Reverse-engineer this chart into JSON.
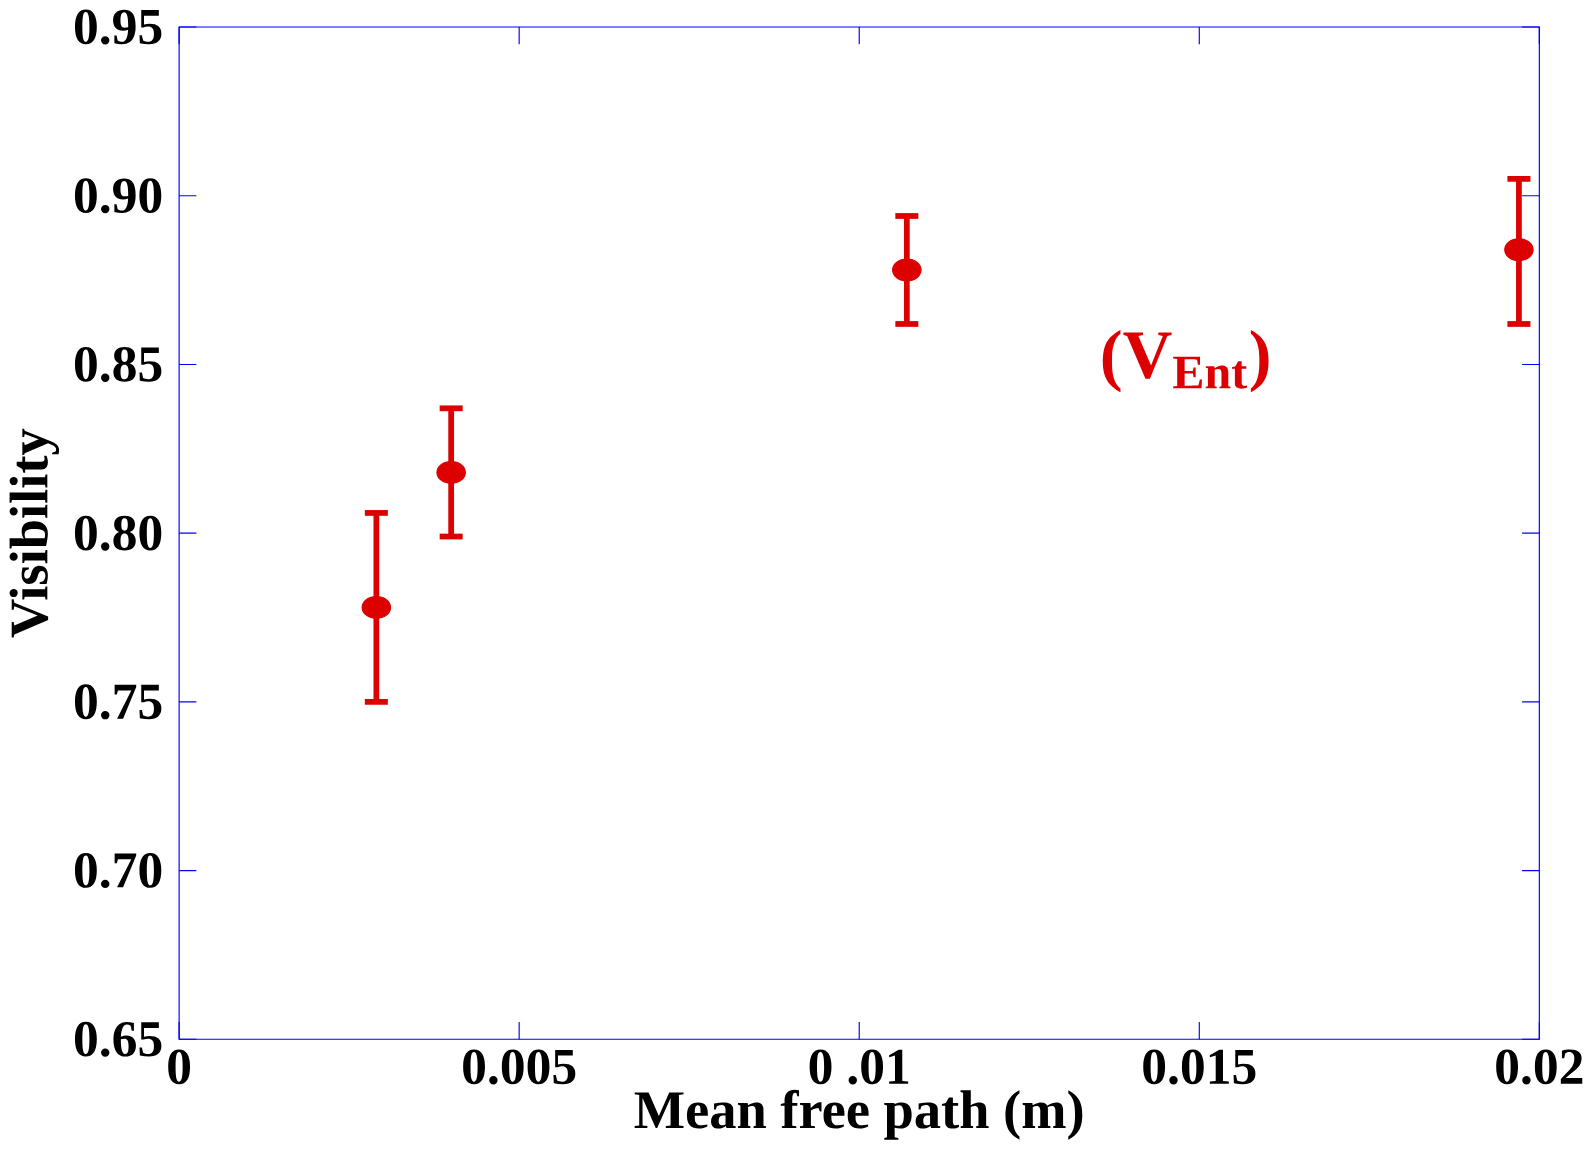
{
  "chart_data": {
    "type": "scatter",
    "xlabel": "Mean free path (m)",
    "ylabel": "Visibility",
    "annotations": [
      "(V$_{Ent}$)"
    ],
    "x": [
      0.0029,
      0.004,
      0.0107,
      0.0197
    ],
    "values": [
      0.778,
      0.818,
      0.878,
      0.884
    ],
    "errors": [
      [
        0.75,
        0.806
      ],
      [
        0.799,
        0.837
      ],
      [
        0.862,
        0.894
      ],
      [
        0.862,
        0.905
      ]
    ],
    "color": "#dd0000",
    "marker": "circle",
    "xlim": [
      0,
      0.02
    ],
    "xticks": [
      0,
      0.005,
      {
        "value": 0.01,
        "label": "0 .01"
      },
      0.015,
      0.02
    ],
    "ylim": [
      0.65,
      0.95
    ],
    "yticks": [
      {
        "value": 0.65,
        "label": "0.65"
      },
      {
        "value": 0.7,
        "label": "0.70"
      },
      {
        "value": 0.75,
        "label": "0.75"
      },
      {
        "value": 0.8,
        "label": "0.80"
      },
      {
        "value": 0.85,
        "label": "0.85"
      },
      {
        "value": 0.9,
        "label": "0.90"
      },
      {
        "value": 0.95,
        "label": "0.95"
      }
    ]
  }
}
